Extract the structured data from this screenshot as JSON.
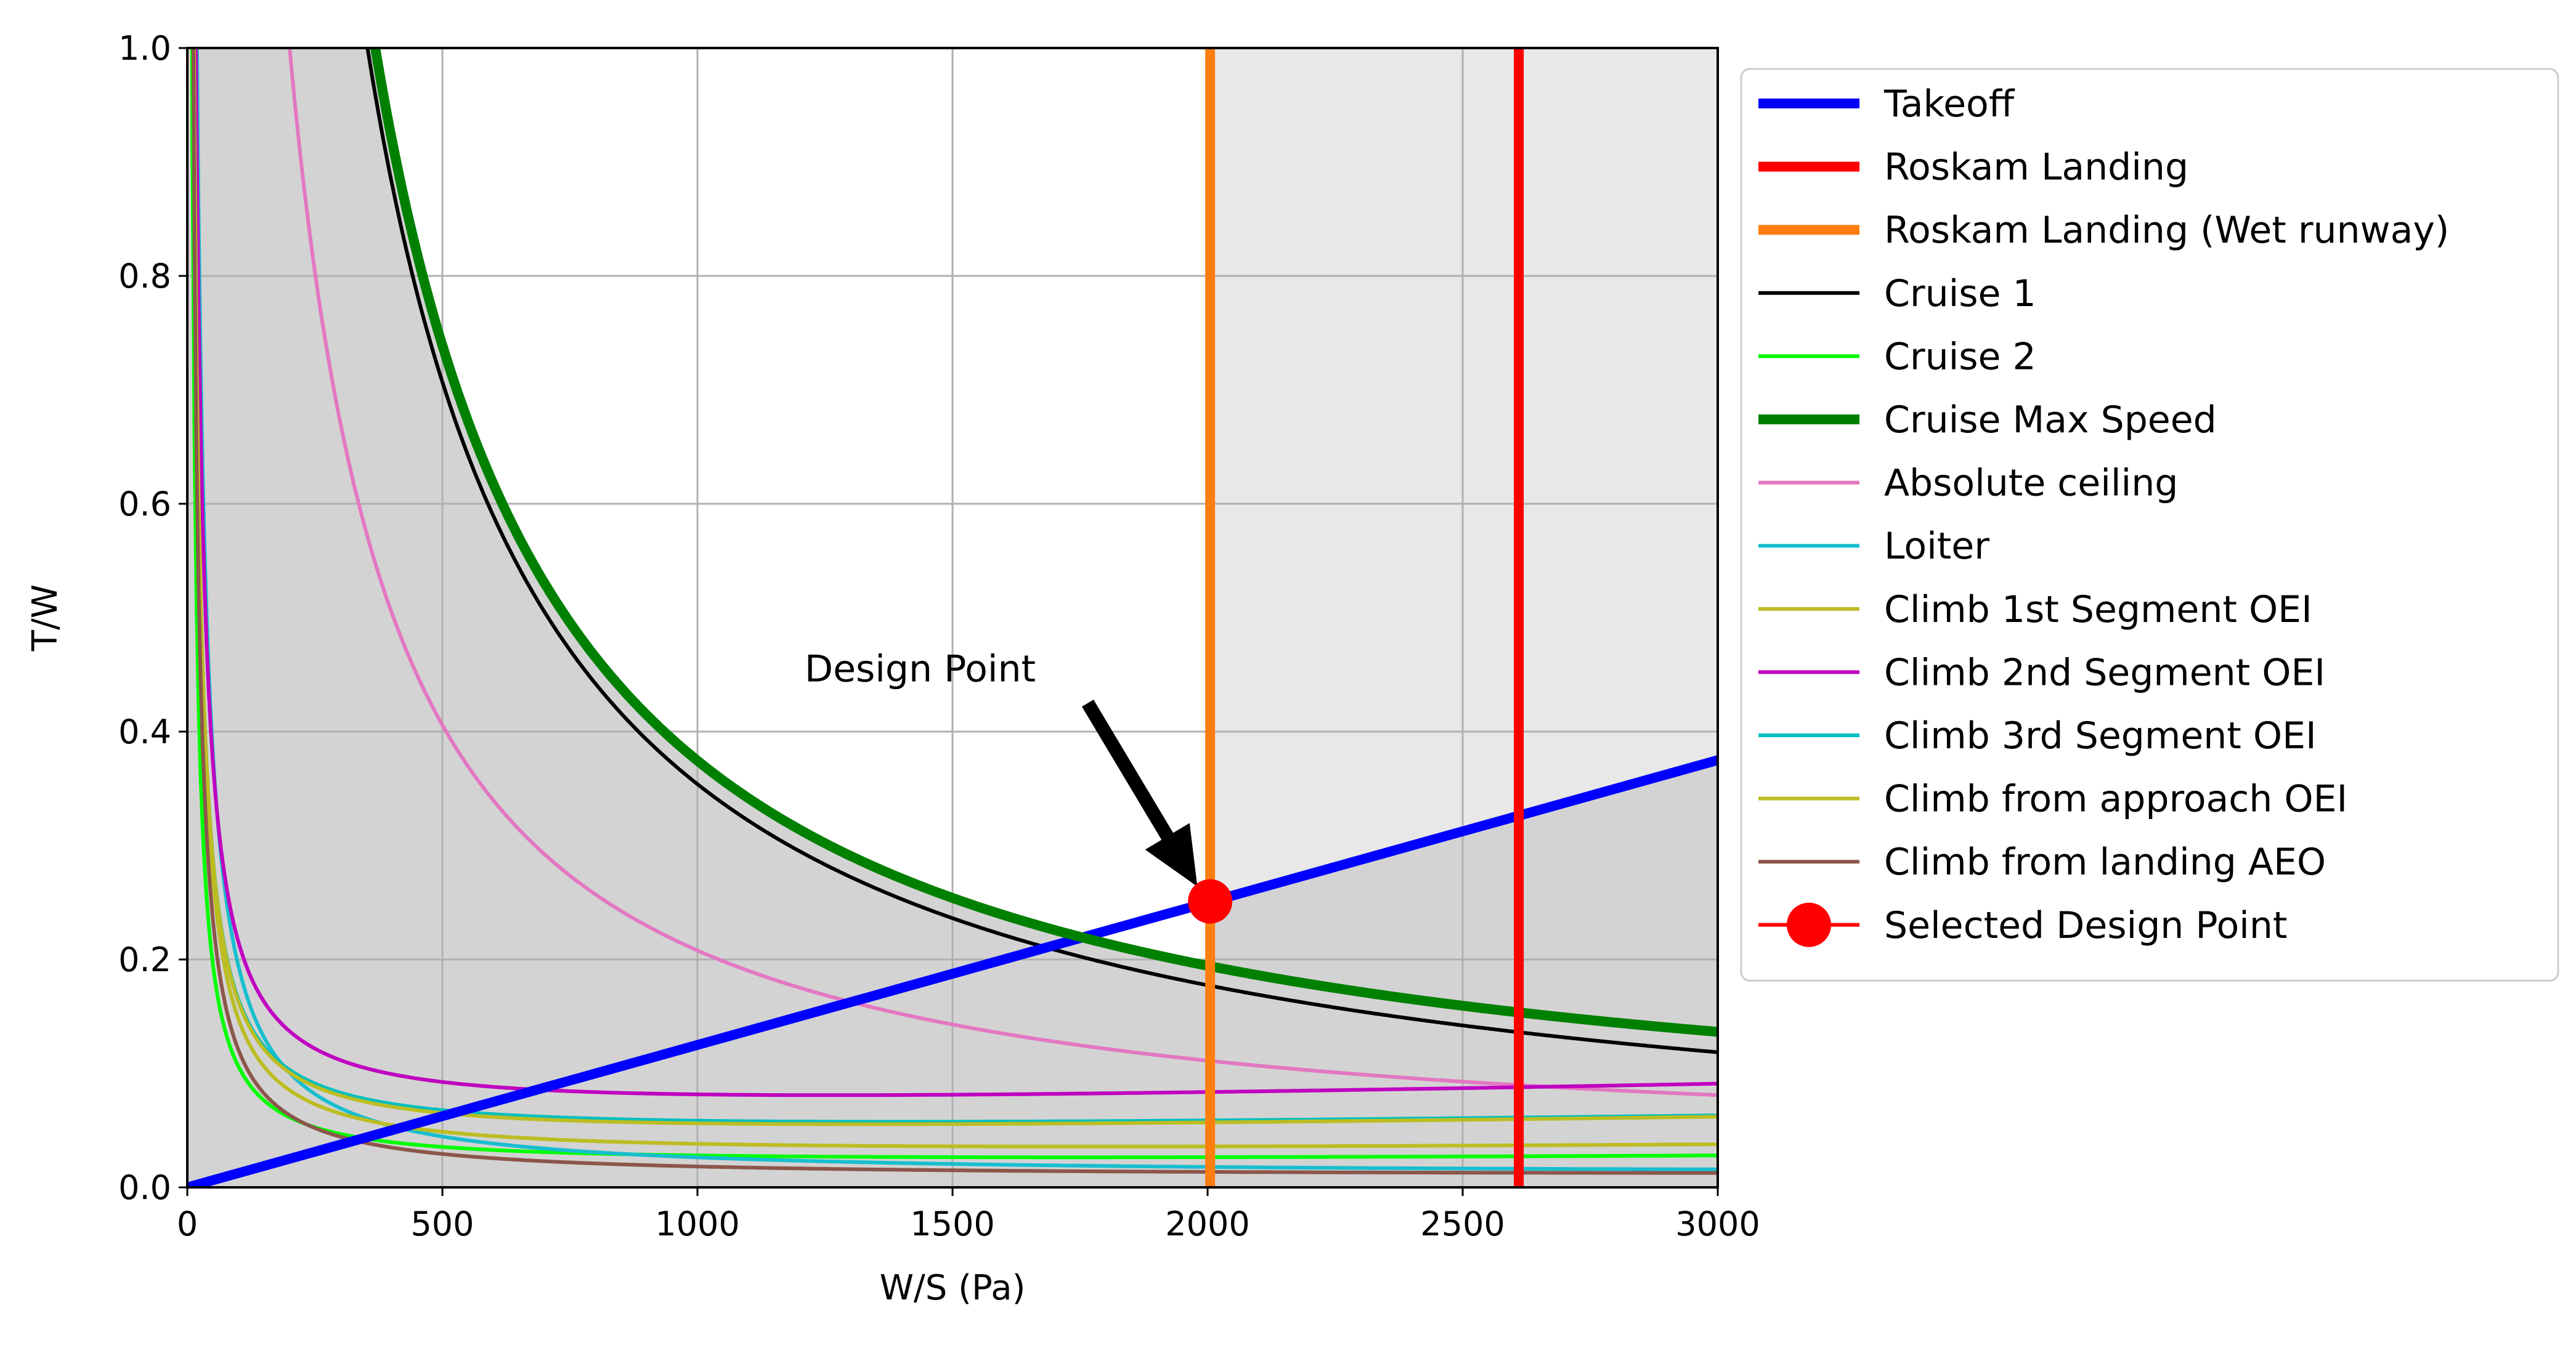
{
  "chart_data": {
    "type": "line",
    "xlabel": "W/S (Pa)",
    "ylabel": "T/W",
    "xlim": [
      0,
      3000
    ],
    "ylim": [
      0,
      1.0
    ],
    "x_ticks": [
      0,
      500,
      1000,
      1500,
      2000,
      2500,
      3000
    ],
    "x_tick_labels": [
      "0",
      "500",
      "1000",
      "1500",
      "2000",
      "2500",
      "3000"
    ],
    "y_ticks": [
      0,
      0.2,
      0.4,
      0.6,
      0.8,
      1.0
    ],
    "y_tick_labels": [
      "0.0",
      "0.2",
      "0.4",
      "0.6",
      "0.8",
      "1.0"
    ],
    "grid": true,
    "legend_position": "outside-right",
    "series": [
      {
        "name": "Takeoff",
        "color": "#0000ff",
        "kind": "line",
        "slope": 0.000125
      },
      {
        "name": "Roskam Landing",
        "color": "#ff0000",
        "kind": "vertical",
        "x": 2610
      },
      {
        "name": "Roskam Landing (Wet runway)",
        "color": "#ff7f0e",
        "kind": "vertical",
        "x": 2005
      },
      {
        "name": "Cruise 1",
        "color": "#000000",
        "kind": "curve",
        "a": 0.0009,
        "b": 353,
        "c": 0.0
      },
      {
        "name": "Cruise 2",
        "color": "#00ff00",
        "kind": "curve",
        "a": 0.016,
        "b": 9.0,
        "c": 3e-06
      },
      {
        "name": "Cruise Max Speed",
        "color": "#008000",
        "kind": "curve",
        "a": 0.0055,
        "b": 366,
        "c": 3e-06
      },
      {
        "name": "Absolute ceiling",
        "color": "#e377c2",
        "kind": "curve",
        "a": 0.0055,
        "b": 199.4,
        "c": 3e-06
      },
      {
        "name": "Loiter",
        "color": "#17becf",
        "kind": "curve",
        "a": 0.0065,
        "b": 18.8,
        "c": 1e-06
      },
      {
        "name": "Climb 1st Segment OEI",
        "color": "#bcbd22",
        "kind": "curve",
        "a": 0.0216,
        "b": 12.6,
        "c": 4e-06
      },
      {
        "name": "Climb 2nd Segment OEI",
        "color": "#c000c0",
        "kind": "curve",
        "a": 0.0557,
        "b": 15.9,
        "c": 1e-05
      },
      {
        "name": "Climb 3rd Segment OEI",
        "color": "#00bfbf",
        "kind": "curve",
        "a": 0.0395,
        "b": 12.5,
        "c": 6.5e-06
      },
      {
        "name": "Climb from approach OEI",
        "color": "#bcbd22",
        "kind": "curve",
        "a": 0.0365,
        "b": 12.6,
        "c": 7.1e-06
      },
      {
        "name": "Climb from landing AEO",
        "color": "#8c564b",
        "kind": "curve",
        "a": 0.0058,
        "b": 11.5,
        "c": 1e-06
      }
    ],
    "design_point": {
      "name": "Selected Design Point",
      "x": 2005,
      "y": 0.251,
      "color": "#ff0000"
    },
    "annotation": {
      "text": "Design Point",
      "text_x": 1210,
      "text_y": 0.455,
      "arrow_from": [
        1765,
        0.425
      ],
      "arrow_to": [
        1980,
        0.264
      ]
    }
  }
}
